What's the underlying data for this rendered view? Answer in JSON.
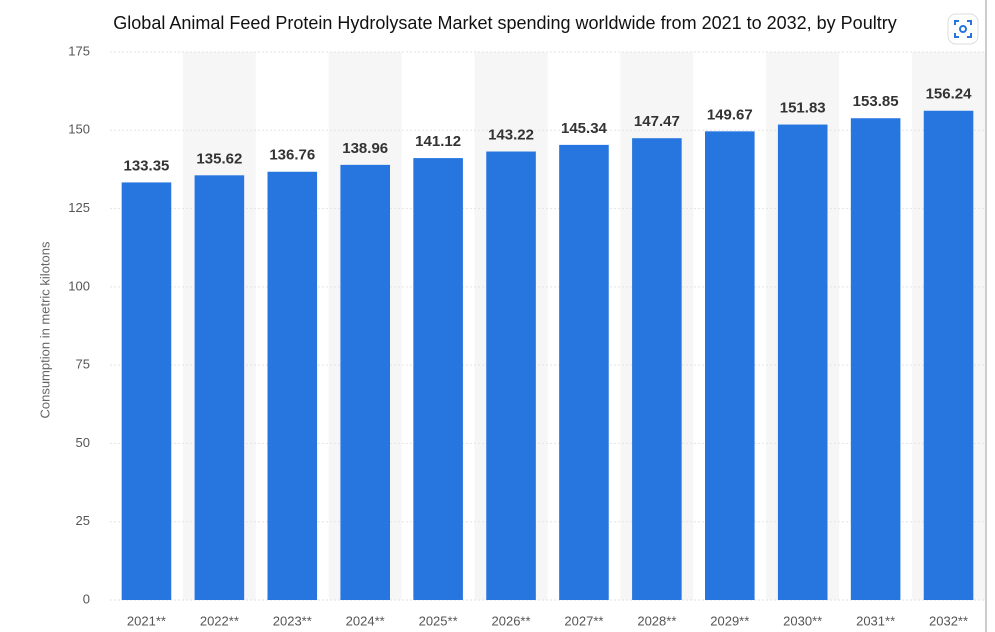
{
  "chart_data": {
    "type": "bar",
    "title": "Global Animal Feed Protein Hydrolysate Market spending worldwide from 2021 to 2032, by Poultry",
    "y_label": "Consumption in metric kilotons",
    "categories": [
      "2021**",
      "2022**",
      "2023**",
      "2024**",
      "2025**",
      "2026**",
      "2027**",
      "2028**",
      "2029**",
      "2030**",
      "2031**",
      "2032**"
    ],
    "values": [
      133.35,
      135.62,
      136.76,
      138.96,
      141.12,
      143.22,
      145.34,
      147.47,
      149.67,
      151.83,
      153.85,
      156.24
    ],
    "color": "#2776e0",
    "ylim": [
      0,
      175
    ],
    "yticks": [
      0,
      25,
      50,
      75,
      100,
      125,
      150,
      175
    ],
    "grid": true
  }
}
